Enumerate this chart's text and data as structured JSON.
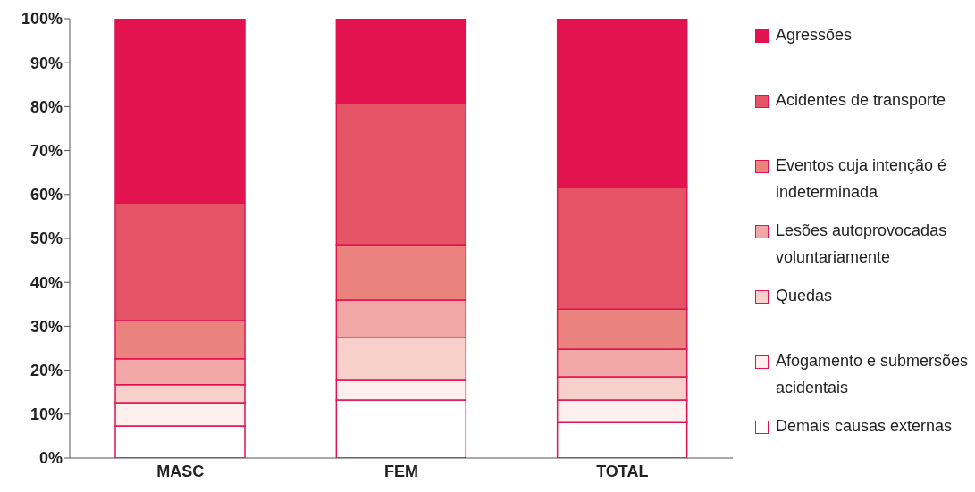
{
  "chart_data": {
    "type": "bar",
    "stacked": true,
    "categories": [
      "MASC",
      "FEM",
      "TOTAL"
    ],
    "series": [
      {
        "name": "Demais causas externas",
        "color": "#ffffff",
        "values": [
          7.3,
          13.2,
          8.1
        ]
      },
      {
        "name": "Afogamento e submersões acidentais",
        "color": "#fcefee",
        "values": [
          5.3,
          4.5,
          5.1
        ]
      },
      {
        "name": "Quedas",
        "color": "#f7d0cc",
        "values": [
          4.1,
          9.7,
          5.3
        ]
      },
      {
        "name": "Lesões autoprovocadas voluntariamente",
        "color": "#f2a7a7",
        "values": [
          5.9,
          8.6,
          6.3
        ]
      },
      {
        "name": "Eventos cuja intenção é indeterminada",
        "color": "#ea827e",
        "values": [
          8.7,
          12.6,
          9.1
        ]
      },
      {
        "name": "Acidentes de transporte",
        "color": "#e55466",
        "values": [
          26.6,
          32.1,
          27.9
        ]
      },
      {
        "name": "Agressões",
        "color": "#e2134f",
        "values": [
          42.1,
          19.3,
          38.2
        ]
      }
    ],
    "ylim": [
      0,
      100
    ],
    "yticks": [
      {
        "value": 0,
        "label": "0%"
      },
      {
        "value": 10,
        "label": "10%"
      },
      {
        "value": 20,
        "label": "20%"
      },
      {
        "value": 30,
        "label": "30%"
      },
      {
        "value": 40,
        "label": "40%"
      },
      {
        "value": 50,
        "label": "50%"
      },
      {
        "value": 60,
        "label": "60%"
      },
      {
        "value": 70,
        "label": "70%"
      },
      {
        "value": 80,
        "label": "80%"
      },
      {
        "value": 90,
        "label": "90%"
      },
      {
        "value": 100,
        "label": "100%"
      }
    ],
    "grid": false,
    "legend": "right"
  }
}
